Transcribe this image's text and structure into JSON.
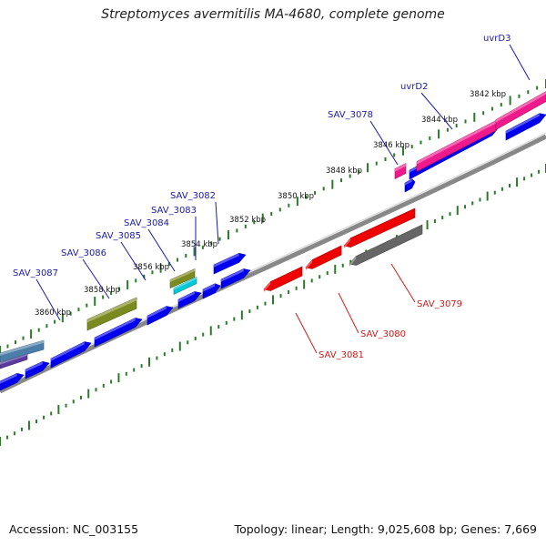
{
  "title": "Streptomyces avermitilis MA-4680, complete genome",
  "footer": {
    "accession": "Accession: NC_003155",
    "summary": "Topology: linear; Length: 9,025,608 bp; Genes: 7,669"
  },
  "colors": {
    "forward_gene": "#0000ee",
    "reverse_gene": "#ee0000",
    "pink_gene": "#ee1a8c",
    "olive_gene": "#7a8a1e",
    "cyan_gene": "#00c8d8",
    "gray_gene": "#666666",
    "steel_gene": "#4a7ea8",
    "backbone": "#888888",
    "tick": "#2a7a2a",
    "forward_label": "#1a1aa8",
    "reverse_label": "#cc1a1a"
  },
  "scale_ticks": [
    {
      "label": "3842 kbp"
    },
    {
      "label": "3844 kbp"
    },
    {
      "label": "3846 kbp"
    },
    {
      "label": "3848 kbp"
    },
    {
      "label": "3850 kbp"
    },
    {
      "label": "3852 kbp"
    },
    {
      "label": "3854 kbp"
    },
    {
      "label": "3856 kbp"
    },
    {
      "label": "3858 kbp"
    },
    {
      "label": "3860 kbp"
    }
  ],
  "forward_genes": [
    {
      "label": "uvrD3"
    },
    {
      "label": "uvrD2"
    },
    {
      "label": "SAV_3078"
    },
    {
      "label": "SAV_3082"
    },
    {
      "label": "SAV_3083"
    },
    {
      "label": "SAV_3084"
    },
    {
      "label": "SAV_3085"
    },
    {
      "label": "SAV_3086"
    },
    {
      "label": "SAV_3087"
    }
  ],
  "reverse_genes": [
    {
      "label": "SAV_3079"
    },
    {
      "label": "SAV_3080"
    },
    {
      "label": "SAV_3081"
    }
  ]
}
